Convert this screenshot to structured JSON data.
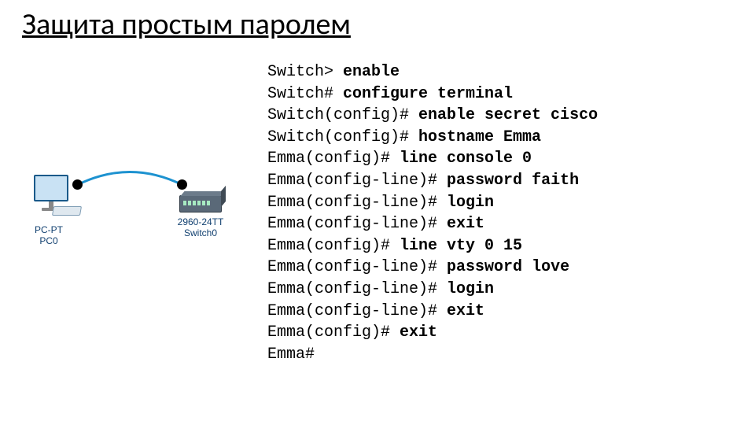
{
  "title": "Защита простым паролем",
  "topology": {
    "pc_label": "PC-PT\nPC0",
    "switch_label": "2960-24TT\nSwitch0"
  },
  "cli": [
    {
      "prompt": "Switch> ",
      "cmd": "enable"
    },
    {
      "prompt": "Switch# ",
      "cmd": "configure terminal"
    },
    {
      "prompt": "Switch(config)# ",
      "cmd": "enable secret cisco"
    },
    {
      "prompt": "Switch(config)# ",
      "cmd": "hostname Emma"
    },
    {
      "prompt": "Emma(config)# ",
      "cmd": "line console 0"
    },
    {
      "prompt": "Emma(config-line)# ",
      "cmd": "password faith"
    },
    {
      "prompt": "Emma(config-line)# ",
      "cmd": "login"
    },
    {
      "prompt": "Emma(config-line)# ",
      "cmd": "exit"
    },
    {
      "prompt": "Emma(config)# ",
      "cmd": "line vty 0 15"
    },
    {
      "prompt": "Emma(config-line)# ",
      "cmd": "password love"
    },
    {
      "prompt": "Emma(config-line)# ",
      "cmd": "login"
    },
    {
      "prompt": "Emma(config-line)# ",
      "cmd": "exit"
    },
    {
      "prompt": "Emma(config)# ",
      "cmd": "exit"
    },
    {
      "prompt": "Emma#",
      "cmd": ""
    }
  ]
}
